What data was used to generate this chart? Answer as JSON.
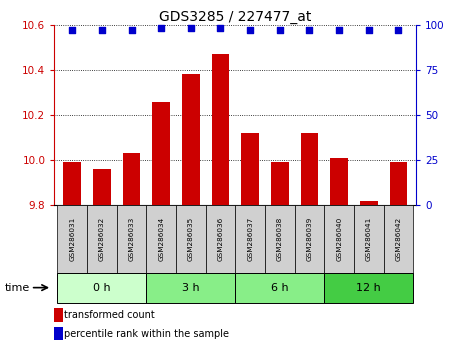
{
  "title": "GDS3285 / 227477_at",
  "samples": [
    "GSM286031",
    "GSM286032",
    "GSM286033",
    "GSM286034",
    "GSM286035",
    "GSM286036",
    "GSM286037",
    "GSM286038",
    "GSM286039",
    "GSM286040",
    "GSM286041",
    "GSM286042"
  ],
  "bar_values": [
    9.99,
    9.96,
    10.03,
    10.26,
    10.38,
    10.47,
    10.12,
    9.99,
    10.12,
    10.01,
    9.82,
    9.99
  ],
  "percentile_values": [
    97,
    97,
    97,
    98,
    98,
    98,
    97,
    97,
    97,
    97,
    97,
    97
  ],
  "bar_color": "#cc0000",
  "percentile_color": "#0000cc",
  "ylim_left": [
    9.8,
    10.6
  ],
  "ylim_right": [
    0,
    100
  ],
  "yticks_left": [
    9.8,
    10.0,
    10.2,
    10.4,
    10.6
  ],
  "yticks_right": [
    0,
    25,
    50,
    75,
    100
  ],
  "groups": [
    {
      "label": "0 h",
      "start": 0,
      "end": 3,
      "color": "#ccffcc"
    },
    {
      "label": "3 h",
      "start": 3,
      "end": 6,
      "color": "#88ee88"
    },
    {
      "label": "6 h",
      "start": 6,
      "end": 9,
      "color": "#88ee88"
    },
    {
      "label": "12 h",
      "start": 9,
      "end": 12,
      "color": "#44cc44"
    }
  ],
  "sample_bg_color": "#d0d0d0",
  "legend_bar_label": "transformed count",
  "legend_pct_label": "percentile rank within the sample",
  "time_label": "time",
  "bar_width": 0.6
}
